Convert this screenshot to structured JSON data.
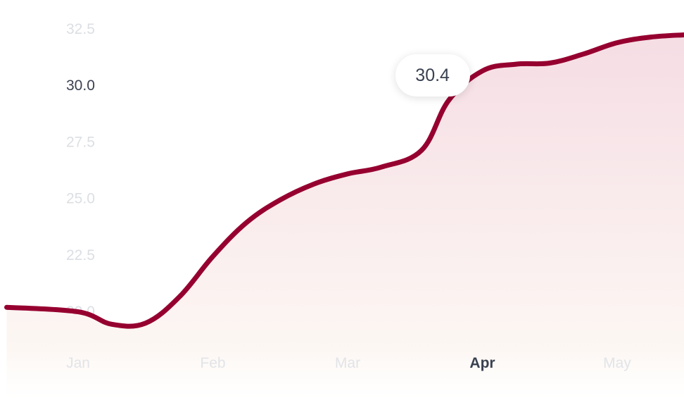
{
  "chart_data": {
    "type": "area",
    "categories": [
      "Jan",
      "Feb",
      "Mar",
      "Apr",
      "May"
    ],
    "x": [
      -0.53,
      0.0,
      0.25,
      0.5,
      0.75,
      1.0,
      1.25,
      1.5,
      1.75,
      2.0,
      2.25,
      2.55,
      2.75,
      3.0,
      3.25,
      3.5,
      3.75,
      4.0,
      4.25,
      4.5
    ],
    "values": [
      20.15,
      19.95,
      19.4,
      19.45,
      20.6,
      22.4,
      23.9,
      24.9,
      25.6,
      26.05,
      26.35,
      27.1,
      29.3,
      30.6,
      30.9,
      30.95,
      31.35,
      31.85,
      32.1,
      32.2
    ],
    "y_ticks": [
      20.0,
      22.5,
      25.0,
      27.5,
      30.0,
      32.5
    ],
    "y_tick_labels": [
      "20.0",
      "22.5",
      "25.0",
      "27.5",
      "30.0",
      "32.5"
    ],
    "active_y_tick": "30.0",
    "active_category": "Apr",
    "tooltip": {
      "label": "30.4",
      "x": 2.63,
      "y": 30.4
    },
    "ylim": [
      18.0,
      33.9
    ],
    "colors": {
      "line": "#960030",
      "fill_top": "#f5dde4",
      "fill_bottom": "#fefbf6"
    },
    "grid": false,
    "title": "",
    "xlabel": "",
    "ylabel": ""
  }
}
